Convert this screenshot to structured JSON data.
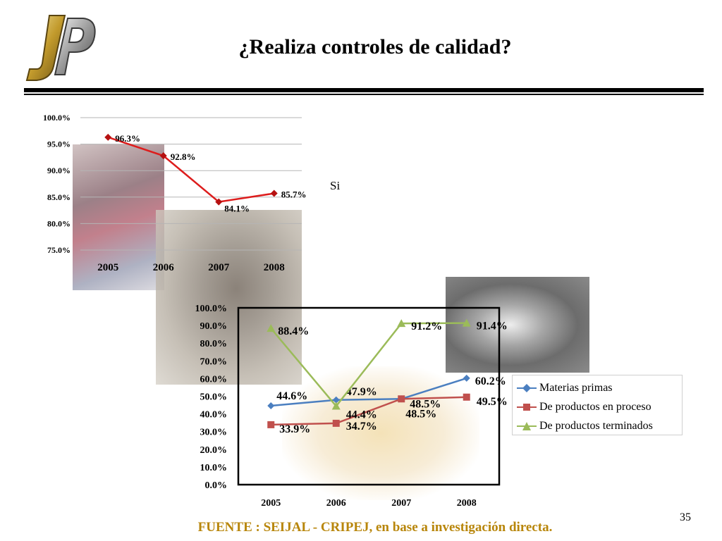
{
  "title": "¿Realiza controles de calidad?",
  "logo": "JP",
  "annotation": "Si",
  "page_number": "35",
  "footer": "FUENTE :  SEIJAL - CRIPEJ,  en base a investigación directa.",
  "colors": {
    "footer": "#b8860b",
    "chart1_series": "#dd1d1d",
    "chart1_marker": "#b61111",
    "materias": "#4b7fc0",
    "proceso": "#c0504d",
    "terminados": "#9bbb59"
  },
  "icons": [
    "diamond-marker-icon",
    "square-marker-icon",
    "triangle-marker-icon"
  ],
  "chart_data": [
    {
      "type": "line",
      "categories": [
        "2005",
        "2006",
        "2007",
        "2008"
      ],
      "series": [
        {
          "values": [
            96.3,
            92.8,
            84.1,
            85.7
          ],
          "labels": [
            "96.3%",
            "92.8%",
            "84.1%",
            "85.7%"
          ]
        }
      ],
      "ylim": [
        75,
        100
      ],
      "yticks": [
        "75.0%",
        "80.0%",
        "85.0%",
        "90.0%",
        "95.0%",
        "100.0%"
      ],
      "grid": true,
      "legend": "none"
    },
    {
      "type": "line",
      "categories": [
        "2005",
        "2006",
        "2007",
        "2008"
      ],
      "series": [
        {
          "name": "Materias primas",
          "values": [
            44.6,
            47.9,
            48.5,
            60.2
          ],
          "labels": [
            "44.6%",
            "47.9%",
            "48.5%",
            "60.2%"
          ]
        },
        {
          "name": "De productos en proceso",
          "values": [
            33.9,
            34.7,
            48.5,
            49.5
          ],
          "labels": [
            "33.9%",
            "34.7%",
            "48.5%",
            "49.5%"
          ]
        },
        {
          "name": "De productos terminados",
          "values": [
            88.4,
            44.4,
            91.2,
            91.4
          ],
          "labels": [
            "88.4%",
            "44.4%",
            "91.2%",
            "91.4%"
          ]
        }
      ],
      "ylim": [
        0,
        100
      ],
      "yticks": [
        "0.0%",
        "10.0%",
        "20.0%",
        "30.0%",
        "40.0%",
        "50.0%",
        "60.0%",
        "70.0%",
        "80.0%",
        "90.0%",
        "100.0%"
      ],
      "grid": false,
      "legend": "right"
    }
  ]
}
